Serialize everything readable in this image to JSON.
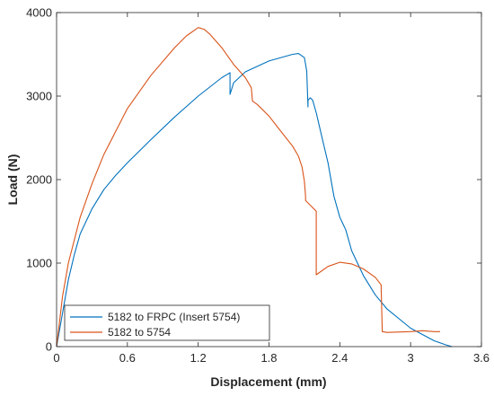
{
  "chart_data": {
    "type": "line",
    "xlabel": "Displacement (mm)",
    "ylabel": "Load (N)",
    "xlim": [
      0,
      3.6
    ],
    "ylim": [
      0,
      4000
    ],
    "xticks": [
      0,
      0.6,
      1.2,
      1.8,
      2.4,
      3,
      3.6
    ],
    "xtick_labels": [
      "0",
      "0.6",
      "1.2",
      "1.8",
      "2.4",
      "3",
      "3.6"
    ],
    "yticks": [
      0,
      1000,
      2000,
      3000,
      4000
    ],
    "ytick_labels": [
      "0",
      "1000",
      "2000",
      "3000",
      "4000"
    ],
    "grid": false,
    "legend_position": "bottom-left",
    "series": [
      {
        "name": "5182 to FRPC (Insert 5754)",
        "color": "#0072BD",
        "x": [
          0,
          0.05,
          0.1,
          0.15,
          0.2,
          0.3,
          0.4,
          0.5,
          0.6,
          0.8,
          1.0,
          1.2,
          1.4,
          1.47,
          1.47,
          1.5,
          1.6,
          1.8,
          2.0,
          2.05,
          2.1,
          2.12,
          2.13,
          2.13,
          2.15,
          2.17,
          2.2,
          2.25,
          2.3,
          2.35,
          2.4,
          2.45,
          2.5,
          2.55,
          2.6,
          2.7,
          2.8,
          3.0,
          3.2,
          3.3,
          3.35
        ],
        "y": [
          0,
          400,
          800,
          1100,
          1350,
          1650,
          1880,
          2050,
          2200,
          2480,
          2750,
          3000,
          3220,
          3280,
          3020,
          3160,
          3290,
          3420,
          3500,
          3510,
          3460,
          3300,
          2870,
          2950,
          2980,
          2950,
          2800,
          2500,
          2200,
          1800,
          1550,
          1400,
          1150,
          1000,
          850,
          620,
          450,
          220,
          70,
          20,
          0
        ]
      },
      {
        "name": "5182 to 5754",
        "color": "#D95319",
        "x": [
          0,
          0.05,
          0.1,
          0.2,
          0.3,
          0.4,
          0.6,
          0.8,
          1.0,
          1.1,
          1.2,
          1.25,
          1.3,
          1.4,
          1.5,
          1.6,
          1.65,
          1.66,
          1.7,
          1.8,
          1.9,
          2.0,
          2.05,
          2.08,
          2.1,
          2.11,
          2.11,
          2.2,
          2.2,
          2.2,
          2.3,
          2.4,
          2.5,
          2.6,
          2.7,
          2.75,
          2.76,
          2.8,
          3.0,
          3.1,
          3.2,
          3.25
        ],
        "y": [
          0,
          600,
          1000,
          1550,
          1950,
          2300,
          2850,
          3250,
          3580,
          3720,
          3820,
          3800,
          3740,
          3580,
          3380,
          3220,
          3100,
          2940,
          2900,
          2760,
          2580,
          2400,
          2280,
          2150,
          1980,
          1800,
          1750,
          1620,
          1050,
          860,
          960,
          1010,
          990,
          930,
          830,
          740,
          180,
          170,
          180,
          190,
          180,
          180
        ]
      }
    ]
  }
}
